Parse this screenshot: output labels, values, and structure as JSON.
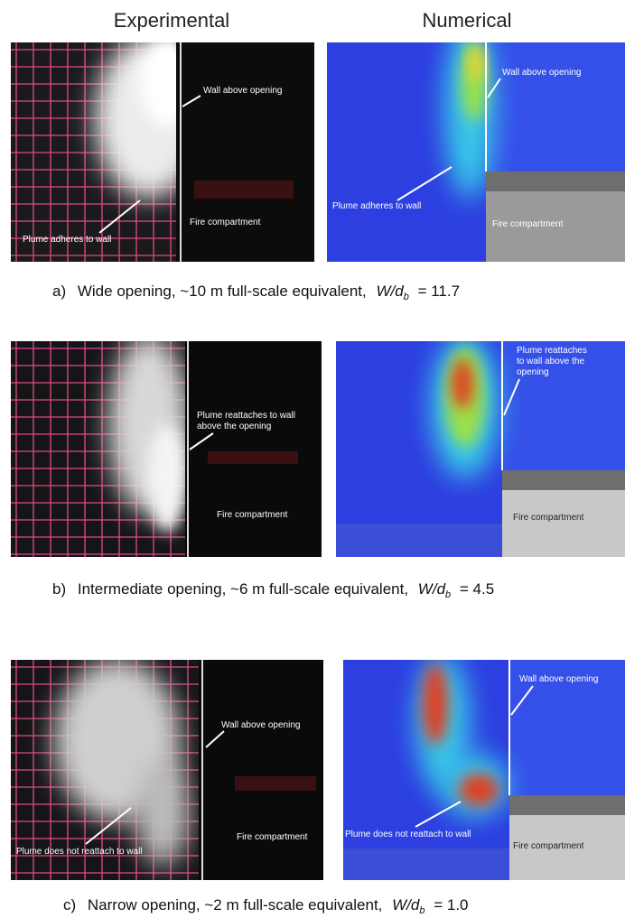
{
  "headers": {
    "experimental": "Experimental",
    "numerical": "Numerical"
  },
  "rows": [
    {
      "experimental": {
        "annotations": [
          {
            "lines": [
              "Wall above opening"
            ]
          },
          {
            "lines": [
              "Fire compartment"
            ]
          },
          {
            "lines": [
              "Plume adheres to wall"
            ]
          }
        ]
      },
      "numerical": {
        "annotations": [
          {
            "lines": [
              "Wall above opening"
            ]
          },
          {
            "lines": [
              "Plume adheres to wall"
            ]
          },
          {
            "lines": [
              "Fire compartment"
            ]
          }
        ]
      },
      "caption": {
        "label": "a)",
        "text": "Wide opening, ~10 m full-scale equivalent,",
        "ratio_symbol": "W/d",
        "ratio_subscript": "b",
        "ratio_value": "= 11.7"
      }
    },
    {
      "experimental": {
        "annotations": [
          {
            "lines": [
              "Plume reattaches to wall",
              "above the opening"
            ]
          },
          {
            "lines": [
              "Fire compartment"
            ]
          }
        ]
      },
      "numerical": {
        "annotations": [
          {
            "lines": [
              "Plume reattaches",
              "to wall above the",
              "opening"
            ]
          },
          {
            "lines": [
              "Fire compartment"
            ]
          }
        ]
      },
      "caption": {
        "label": "b)",
        "text": "Intermediate opening, ~6 m full-scale equivalent,",
        "ratio_symbol": "W/d",
        "ratio_subscript": "b",
        "ratio_value": "= 4.5"
      }
    },
    {
      "experimental": {
        "annotations": [
          {
            "lines": [
              "Wall above opening"
            ]
          },
          {
            "lines": [
              "Fire compartment"
            ]
          },
          {
            "lines": [
              "Plume does not reattach to wall"
            ]
          }
        ]
      },
      "numerical": {
        "annotations": [
          {
            "lines": [
              "Wall above opening"
            ]
          },
          {
            "lines": [
              "Plume does not reattach to wall"
            ]
          },
          {
            "lines": [
              "Fire compartment"
            ]
          }
        ]
      },
      "caption": {
        "label": "c)",
        "text": "Narrow opening, ~2 m full-scale equivalent,",
        "ratio_symbol": "W/d",
        "ratio_subscript": "b",
        "ratio_value": "= 1.0"
      }
    }
  ]
}
